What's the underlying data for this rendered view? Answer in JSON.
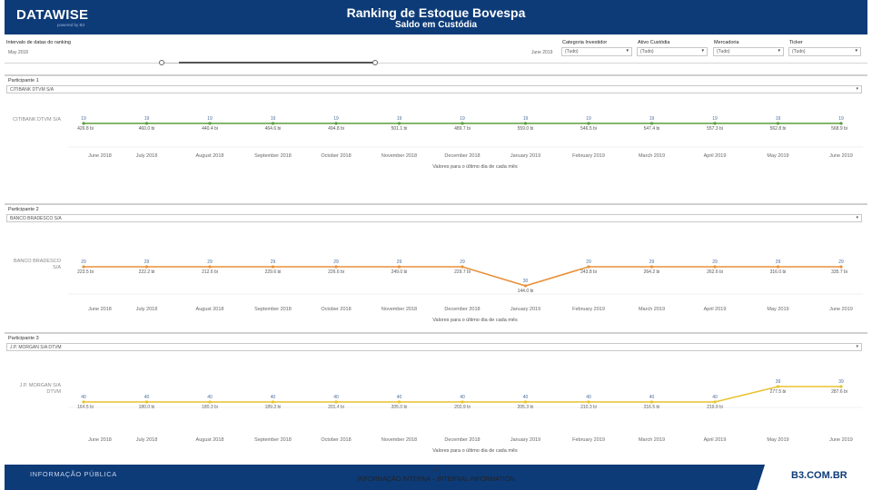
{
  "header": {
    "logo": "DATAWISE",
    "logo_sub": "powered by B3",
    "title": "Ranking de Estoque Bovespa",
    "subtitle": "Saldo em Custódia"
  },
  "filters": {
    "date_label": "Intervalo de datas do ranking",
    "date_start": "May 2018",
    "date_end": "June 2019",
    "investor_label": "Categoria Investidor",
    "investor_value": "(Tudo)",
    "asset_label": "Ativo Custódia",
    "asset_value": "(Tudo)",
    "market_label": "Mercadoria",
    "market_value": "(Tudo)",
    "ticker_label": "Ticker",
    "ticker_value": "(Tudo)"
  },
  "months": [
    "June 2018",
    "July 2018",
    "August 2018",
    "September 2018",
    "October 2018",
    "November 2018",
    "December 2018",
    "January 2019",
    "February 2019",
    "March 2019",
    "April 2019",
    "May 2019",
    "June 2019"
  ],
  "axis_caption": "Valores para o último dia de cada mês",
  "panels": [
    {
      "title": "Participante 1",
      "selected": "CITIBANK DTVM S/A",
      "row_label": "CITIBANK DTVM S/A",
      "color": "#5a9e3e",
      "ranks": [
        "19",
        "19",
        "19",
        "19",
        "19",
        "19",
        "19",
        "19",
        "19",
        "19",
        "19",
        "19",
        "19"
      ],
      "values": [
        "426.8 bi",
        "460.0 bi",
        "440.4 bi",
        "464.6 bi",
        "494.8 bi",
        "501.1 bi",
        "489.7 bi",
        "559.0 bi",
        "546.5 bi",
        "547.4 bi",
        "557.3 bi",
        "562.8 bi",
        "568.9 bi"
      ],
      "rank_nums": [
        19,
        19,
        19,
        19,
        19,
        19,
        19,
        19,
        19,
        19,
        19,
        19,
        19
      ]
    },
    {
      "title": "Participante 2",
      "selected": "BANCO BRADESCO S/A",
      "row_label": "BANCO BRADESCO S/A",
      "color": "#e8913a",
      "ranks": [
        "29",
        "29",
        "29",
        "29",
        "29",
        "29",
        "29",
        "30",
        "29",
        "29",
        "29",
        "29",
        "29"
      ],
      "values": [
        "223.5 bi",
        "222.2 bi",
        "212.6 bi",
        "229.6 bi",
        "226.6 bi",
        "249.0 bi",
        "229.7 bi",
        "144.0 bi",
        "243.8 bi",
        "264.2 bi",
        "262.6 bi",
        "316.0 bi",
        "335.7 bi"
      ],
      "rank_nums": [
        29,
        29,
        29,
        29,
        29,
        29,
        29,
        30,
        29,
        29,
        29,
        29,
        29
      ]
    },
    {
      "title": "Participante 3",
      "selected": "J.P. MORGAN S/A DTVM",
      "row_label": "J.P. MORGAN S/A DTVM",
      "color": "#e8c22e",
      "ranks": [
        "40",
        "40",
        "40",
        "40",
        "40",
        "40",
        "40",
        "40",
        "40",
        "40",
        "40",
        "39",
        "39"
      ],
      "values": [
        "164.5 bi",
        "180.0 bi",
        "180.3 bi",
        "189.2 bi",
        "201.4 bi",
        "205.0 bi",
        "202.9 bi",
        "205.3 bi",
        "210.3 bi",
        "216.5 bi",
        "219.9 bi",
        "277.5 bi",
        "287.6 bi"
      ],
      "rank_nums": [
        40,
        40,
        40,
        40,
        40,
        40,
        40,
        40,
        40,
        40,
        40,
        39,
        39
      ]
    }
  ]
}
